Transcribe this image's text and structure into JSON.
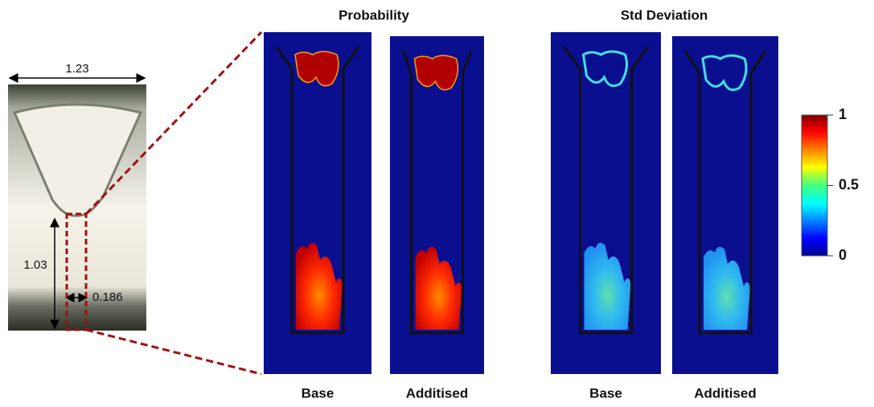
{
  "photo": {
    "width_label": "1.23",
    "height_label": "1.03",
    "gap_label": "0.186"
  },
  "groups": [
    {
      "title": "Probability",
      "panels": [
        "Base",
        "Additised"
      ]
    },
    {
      "title": "Std Deviation",
      "panels": [
        "Base",
        "Additised"
      ]
    }
  ],
  "colorbar": {
    "ticks": [
      0,
      0.5,
      1
    ]
  }
}
